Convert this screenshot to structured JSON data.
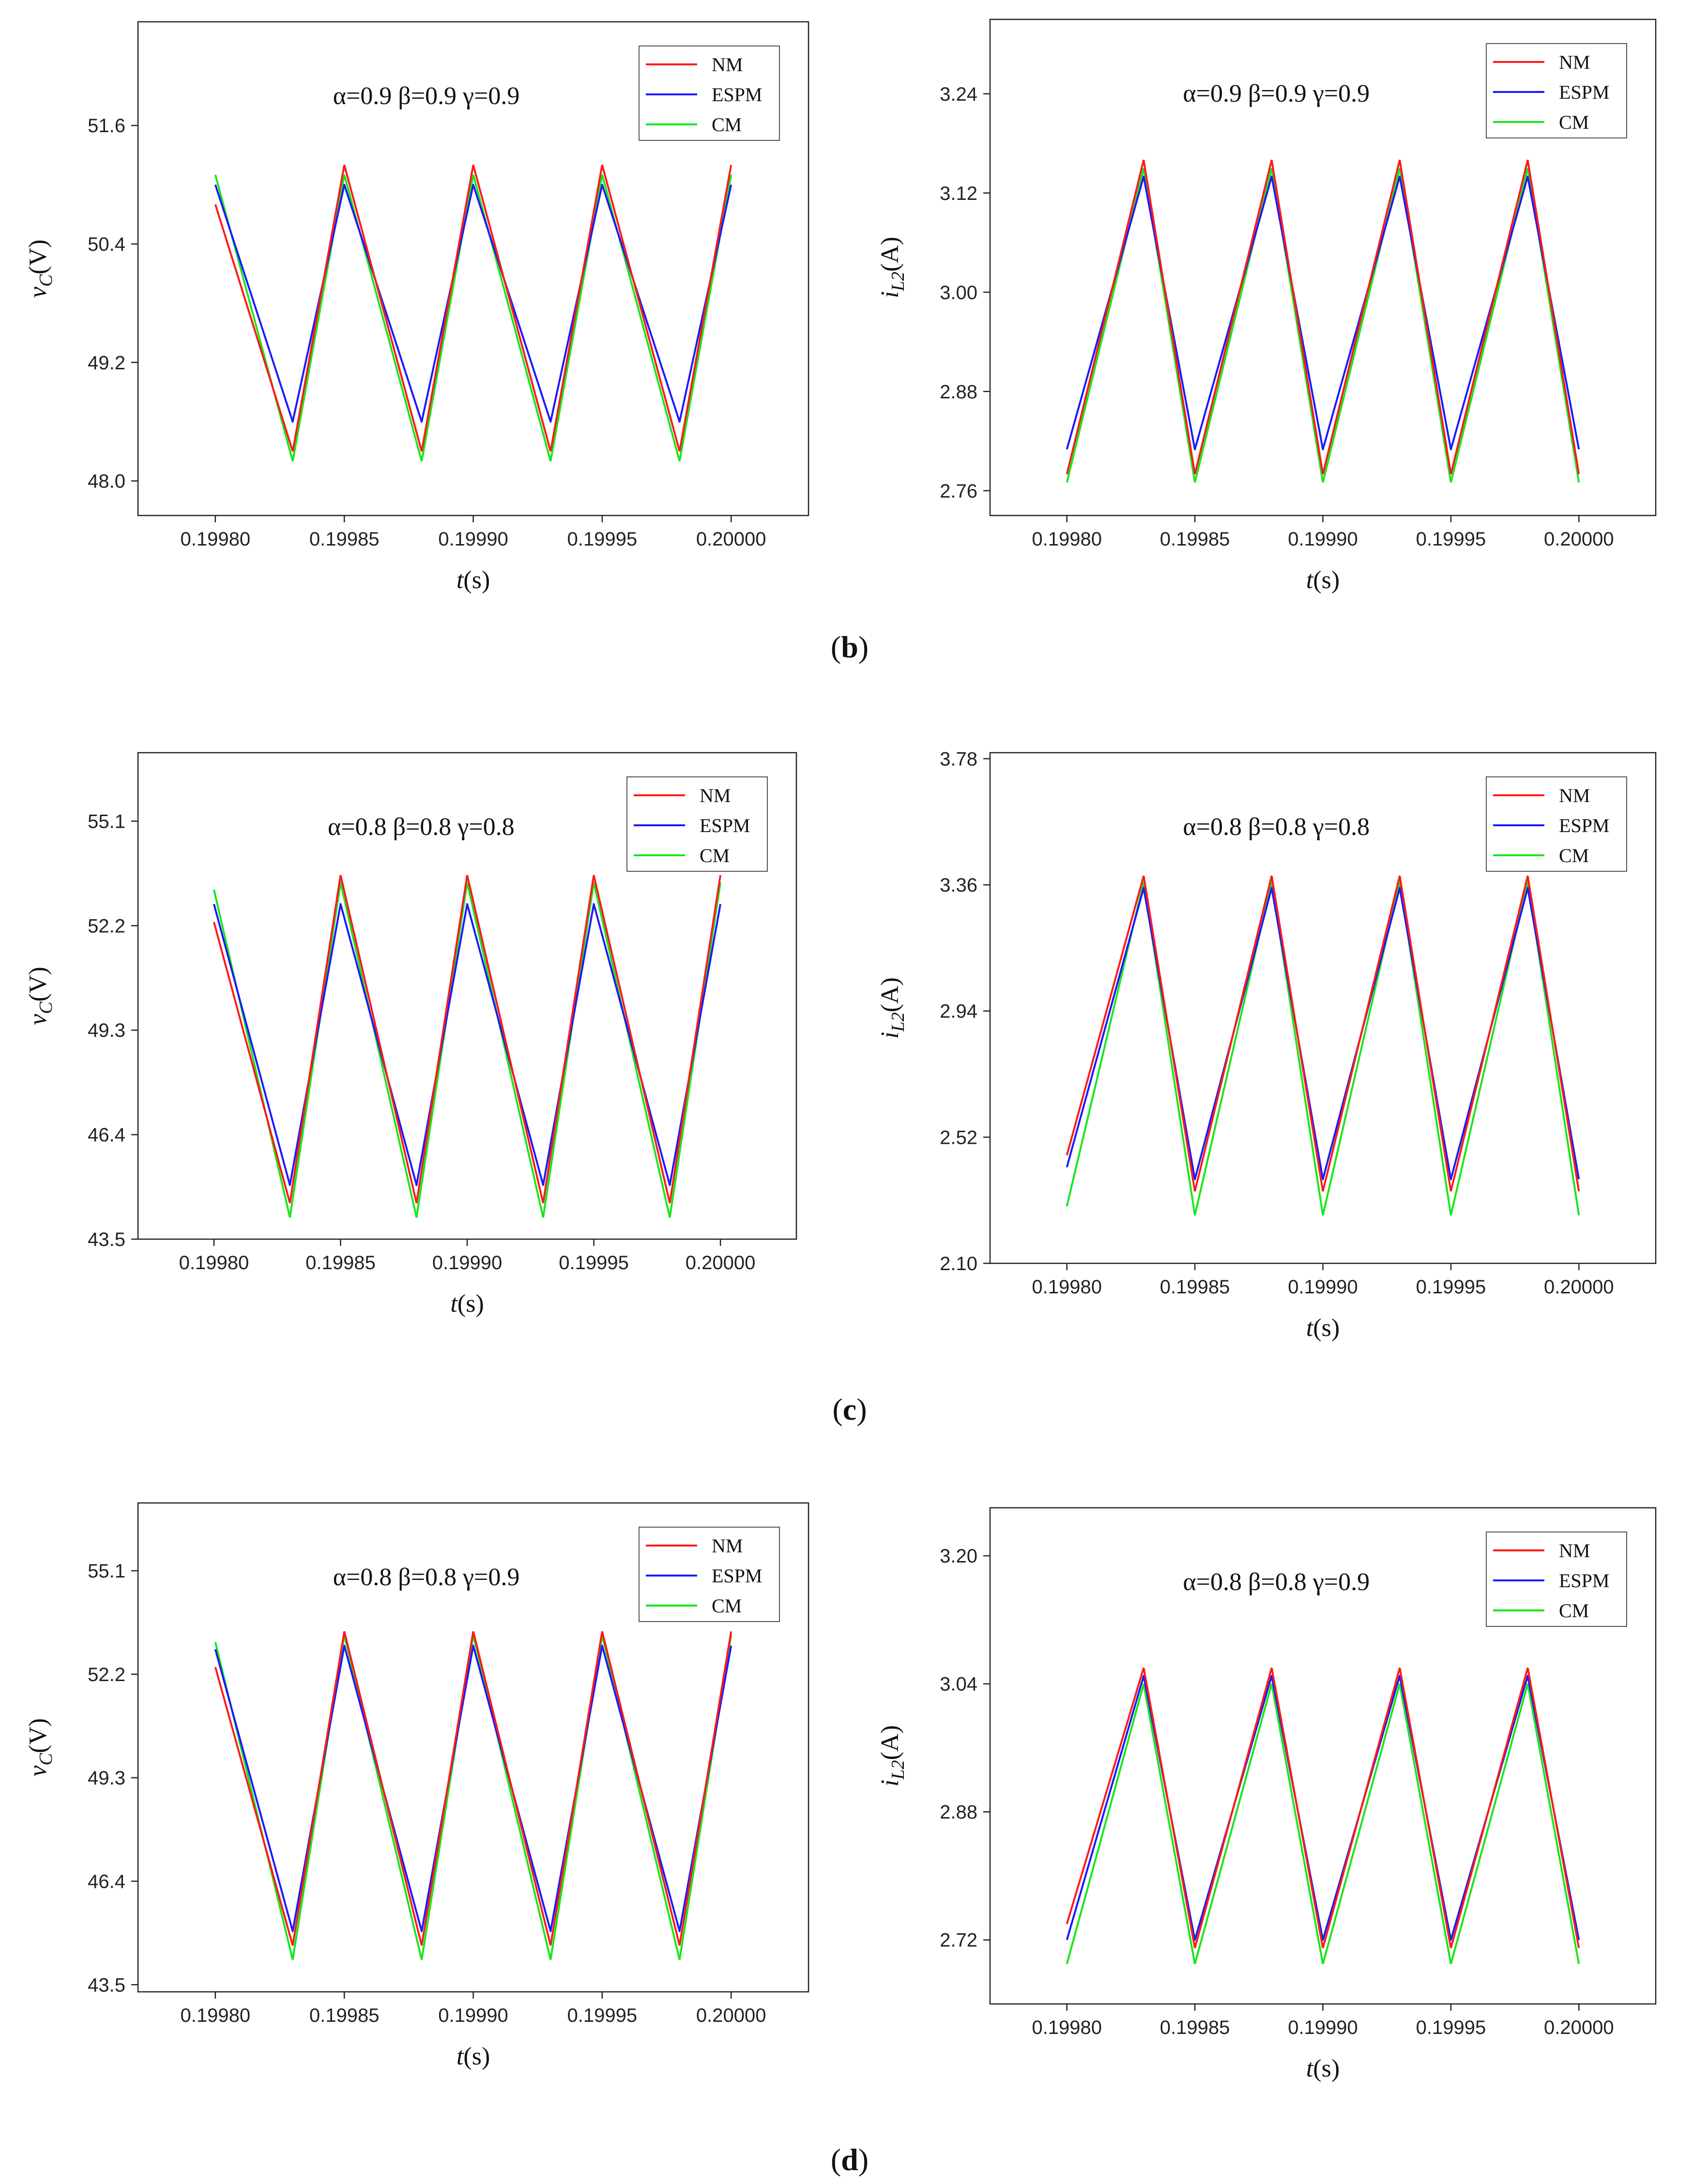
{
  "panel_labels": [
    "(b)",
    "(c)",
    "(d)"
  ],
  "colors": {
    "NM": "#ff1a1a",
    "ESPM": "#1a1aff",
    "CM": "#19e619"
  },
  "chart_data": [
    {
      "type": "line",
      "id": "b-vc",
      "annotation": "α=0.9  β=0.9  γ=0.9",
      "ylabel_main": "v",
      "ylabel_sub": "C",
      "ylabel_unit": "(V)",
      "xlabel_main": "t",
      "xlabel_unit": "(s)",
      "xlim": [
        0.19977,
        0.20003
      ],
      "ylim": [
        47.65,
        52.65
      ],
      "xticks": [
        "0.19980",
        "0.19985",
        "0.19990",
        "0.19995",
        "0.20000"
      ],
      "xtick_values": [
        0.1998,
        0.19985,
        0.1999,
        0.19995,
        0.2
      ],
      "yticks": [
        "48.0",
        "49.2",
        "50.4",
        "51.6"
      ],
      "ytick_values": [
        48.0,
        49.2,
        50.4,
        51.6
      ],
      "legend": [
        "NM",
        "ESPM",
        "CM"
      ],
      "series": [
        {
          "name": "NM",
          "x": [
            0.1998,
            0.19983,
            0.19985,
            0.19988,
            0.1999,
            0.19993,
            0.19995,
            0.19998,
            0.2
          ],
          "y": [
            50.8,
            48.3,
            51.2,
            48.3,
            51.2,
            48.3,
            51.2,
            48.3,
            51.2
          ]
        },
        {
          "name": "ESPM",
          "x": [
            0.1998,
            0.19983,
            0.19985,
            0.19988,
            0.1999,
            0.19993,
            0.19995,
            0.19998,
            0.2
          ],
          "y": [
            51.0,
            48.6,
            51.0,
            48.6,
            51.0,
            48.6,
            51.0,
            48.6,
            51.0
          ]
        },
        {
          "name": "CM",
          "x": [
            0.1998,
            0.19983,
            0.19985,
            0.19988,
            0.1999,
            0.19993,
            0.19995,
            0.19998,
            0.2
          ],
          "y": [
            51.1,
            48.2,
            51.1,
            48.2,
            51.1,
            48.2,
            51.1,
            48.2,
            51.1
          ]
        }
      ]
    },
    {
      "type": "line",
      "id": "b-il2",
      "annotation": "α=0.9  β=0.9  γ=0.9",
      "ylabel_main": "i",
      "ylabel_sub": "L2",
      "ylabel_unit": "(A)",
      "xlabel_main": "t",
      "xlabel_unit": "(s)",
      "xlim": [
        0.19977,
        0.20003
      ],
      "ylim": [
        2.73,
        3.33
      ],
      "xticks": [
        "0.19980",
        "0.19985",
        "0.19990",
        "0.19995",
        "0.20000"
      ],
      "xtick_values": [
        0.1998,
        0.19985,
        0.1999,
        0.19995,
        0.2
      ],
      "yticks": [
        "2.76",
        "2.88",
        "3.00",
        "3.12",
        "3.24"
      ],
      "ytick_values": [
        2.76,
        2.88,
        3.0,
        3.12,
        3.24
      ],
      "legend": [
        "NM",
        "ESPM",
        "CM"
      ],
      "series": [
        {
          "name": "NM",
          "x": [
            0.1998,
            0.19983,
            0.19985,
            0.19988,
            0.1999,
            0.19993,
            0.19995,
            0.19998,
            0.2
          ],
          "y": [
            2.78,
            3.16,
            2.78,
            3.16,
            2.78,
            3.16,
            2.78,
            3.16,
            2.78
          ]
        },
        {
          "name": "ESPM",
          "x": [
            0.1998,
            0.19983,
            0.19985,
            0.19988,
            0.1999,
            0.19993,
            0.19995,
            0.19998,
            0.2
          ],
          "y": [
            2.81,
            3.14,
            2.81,
            3.14,
            2.81,
            3.14,
            2.81,
            3.14,
            2.81
          ]
        },
        {
          "name": "CM",
          "x": [
            0.1998,
            0.19983,
            0.19985,
            0.19988,
            0.1999,
            0.19993,
            0.19995,
            0.19998,
            0.2
          ],
          "y": [
            2.77,
            3.15,
            2.77,
            3.15,
            2.77,
            3.15,
            2.77,
            3.15,
            2.77
          ]
        }
      ]
    },
    {
      "type": "line",
      "id": "c-vc",
      "annotation": "α=0.8  β=0.8  γ=0.8",
      "ylabel_main": "v",
      "ylabel_sub": "C",
      "ylabel_unit": "(V)",
      "xlabel_main": "t",
      "xlabel_unit": "(s)",
      "xlim": [
        0.19977,
        0.20003
      ],
      "ylim": [
        43.5,
        57.0
      ],
      "xticks": [
        "0.19980",
        "0.19985",
        "0.19990",
        "0.19995",
        "0.20000"
      ],
      "xtick_values": [
        0.1998,
        0.19985,
        0.1999,
        0.19995,
        0.2
      ],
      "yticks": [
        "43.5",
        "46.4",
        "49.3",
        "52.2",
        "55.1"
      ],
      "ytick_values": [
        43.5,
        46.4,
        49.3,
        52.2,
        55.1
      ],
      "legend": [
        "NM",
        "ESPM",
        "CM"
      ],
      "series": [
        {
          "name": "NM",
          "x": [
            0.1998,
            0.19983,
            0.19985,
            0.19988,
            0.1999,
            0.19993,
            0.19995,
            0.19998,
            0.2
          ],
          "y": [
            52.3,
            44.5,
            53.6,
            44.5,
            53.6,
            44.5,
            53.6,
            44.5,
            53.6
          ]
        },
        {
          "name": "ESPM",
          "x": [
            0.1998,
            0.19983,
            0.19985,
            0.19988,
            0.1999,
            0.19993,
            0.19995,
            0.19998,
            0.2
          ],
          "y": [
            52.8,
            45.0,
            52.8,
            45.0,
            52.8,
            45.0,
            52.8,
            45.0,
            52.8
          ]
        },
        {
          "name": "CM",
          "x": [
            0.1998,
            0.19983,
            0.19985,
            0.19988,
            0.1999,
            0.19993,
            0.19995,
            0.19998,
            0.2
          ],
          "y": [
            53.2,
            44.1,
            53.4,
            44.1,
            53.4,
            44.1,
            53.4,
            44.1,
            53.4
          ]
        }
      ]
    },
    {
      "type": "line",
      "id": "c-il2",
      "annotation": "α=0.8  β=0.8  γ=0.8",
      "ylabel_main": "i",
      "ylabel_sub": "L2",
      "ylabel_unit": "(A)",
      "xlabel_main": "t",
      "xlabel_unit": "(s)",
      "xlim": [
        0.19977,
        0.20003
      ],
      "ylim": [
        2.1,
        3.8
      ],
      "xticks": [
        "0.19980",
        "0.19985",
        "0.19990",
        "0.19995",
        "0.20000"
      ],
      "xtick_values": [
        0.1998,
        0.19985,
        0.1999,
        0.19995,
        0.2
      ],
      "yticks": [
        "2.10",
        "2.52",
        "2.94",
        "3.36",
        "3.78"
      ],
      "ytick_values": [
        2.1,
        2.52,
        2.94,
        3.36,
        3.78
      ],
      "legend": [
        "NM",
        "ESPM",
        "CM"
      ],
      "series": [
        {
          "name": "NM",
          "x": [
            0.1998,
            0.19983,
            0.19985,
            0.19988,
            0.1999,
            0.19993,
            0.19995,
            0.19998,
            0.2
          ],
          "y": [
            2.46,
            3.39,
            2.34,
            3.39,
            2.34,
            3.39,
            2.34,
            3.39,
            2.34
          ]
        },
        {
          "name": "ESPM",
          "x": [
            0.1998,
            0.19983,
            0.19985,
            0.19988,
            0.1999,
            0.19993,
            0.19995,
            0.19998,
            0.2
          ],
          "y": [
            2.42,
            3.35,
            2.38,
            3.35,
            2.38,
            3.35,
            2.38,
            3.35,
            2.38
          ]
        },
        {
          "name": "CM",
          "x": [
            0.1998,
            0.19983,
            0.19985,
            0.19988,
            0.1999,
            0.19993,
            0.19995,
            0.19998,
            0.2
          ],
          "y": [
            2.29,
            3.37,
            2.26,
            3.37,
            2.26,
            3.37,
            2.26,
            3.37,
            2.26
          ]
        }
      ]
    },
    {
      "type": "line",
      "id": "d-vc",
      "annotation": "α=0.8  β=0.8  γ=0.9",
      "ylabel_main": "v",
      "ylabel_sub": "C",
      "ylabel_unit": "(V)",
      "xlabel_main": "t",
      "xlabel_unit": "(s)",
      "xlim": [
        0.19977,
        0.20003
      ],
      "ylim": [
        43.3,
        57.0
      ],
      "xticks": [
        "0.19980",
        "0.19985",
        "0.19990",
        "0.19995",
        "0.20000"
      ],
      "xtick_values": [
        0.1998,
        0.19985,
        0.1999,
        0.19995,
        0.2
      ],
      "yticks": [
        "43.5",
        "46.4",
        "49.3",
        "52.2",
        "55.1"
      ],
      "ytick_values": [
        43.5,
        46.4,
        49.3,
        52.2,
        55.1
      ],
      "legend": [
        "NM",
        "ESPM",
        "CM"
      ],
      "series": [
        {
          "name": "NM",
          "x": [
            0.1998,
            0.19983,
            0.19985,
            0.19988,
            0.1999,
            0.19993,
            0.19995,
            0.19998,
            0.2
          ],
          "y": [
            52.4,
            44.6,
            53.4,
            44.6,
            53.4,
            44.6,
            53.4,
            44.6,
            53.4
          ]
        },
        {
          "name": "ESPM",
          "x": [
            0.1998,
            0.19983,
            0.19985,
            0.19988,
            0.1999,
            0.19993,
            0.19995,
            0.19998,
            0.2
          ],
          "y": [
            52.9,
            45.0,
            53.0,
            45.0,
            53.0,
            45.0,
            53.0,
            45.0,
            53.0
          ]
        },
        {
          "name": "CM",
          "x": [
            0.1998,
            0.19983,
            0.19985,
            0.19988,
            0.1999,
            0.19993,
            0.19995,
            0.19998,
            0.2
          ],
          "y": [
            53.1,
            44.2,
            53.3,
            44.2,
            53.3,
            44.2,
            53.3,
            44.2,
            53.3
          ]
        }
      ]
    },
    {
      "type": "line",
      "id": "d-il2",
      "annotation": "α=0.8  β=0.8  γ=0.9",
      "ylabel_main": "i",
      "ylabel_sub": "L2",
      "ylabel_unit": "(A)",
      "xlabel_main": "t",
      "xlabel_unit": "(s)",
      "xlim": [
        0.19977,
        0.20003
      ],
      "ylim": [
        2.64,
        3.26
      ],
      "xticks": [
        "0.19980",
        "0.19985",
        "0.19990",
        "0.19995",
        "0.20000"
      ],
      "xtick_values": [
        0.1998,
        0.19985,
        0.1999,
        0.19995,
        0.2
      ],
      "yticks": [
        "2.72",
        "2.88",
        "3.04",
        "3.20"
      ],
      "ytick_values": [
        2.72,
        2.88,
        3.04,
        3.2
      ],
      "legend": [
        "NM",
        "ESPM",
        "CM"
      ],
      "series": [
        {
          "name": "NM",
          "x": [
            0.1998,
            0.19983,
            0.19985,
            0.19988,
            0.1999,
            0.19993,
            0.19995,
            0.19998,
            0.2
          ],
          "y": [
            2.74,
            3.06,
            2.71,
            3.06,
            2.71,
            3.06,
            2.71,
            3.06,
            2.71
          ]
        },
        {
          "name": "ESPM",
          "x": [
            0.1998,
            0.19983,
            0.19985,
            0.19988,
            0.1999,
            0.19993,
            0.19995,
            0.19998,
            0.2
          ],
          "y": [
            2.72,
            3.05,
            2.72,
            3.05,
            2.72,
            3.05,
            2.72,
            3.05,
            2.72
          ]
        },
        {
          "name": "CM",
          "x": [
            0.1998,
            0.19983,
            0.19985,
            0.19988,
            0.1999,
            0.19993,
            0.19995,
            0.19998,
            0.2
          ],
          "y": [
            2.69,
            3.04,
            2.69,
            3.04,
            2.69,
            3.04,
            2.69,
            3.04,
            2.69
          ]
        }
      ]
    }
  ]
}
